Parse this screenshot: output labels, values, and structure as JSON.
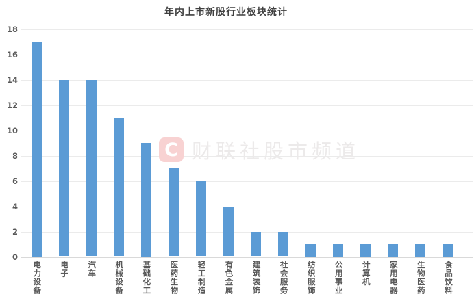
{
  "chart_data": {
    "type": "bar",
    "title": "年内上市新股行业板块统计",
    "categories": [
      "电力设备",
      "电子",
      "汽车",
      "机械设备",
      "基础化工",
      "医药生物",
      "轻工制造",
      "有色金属",
      "建筑装饰",
      "社会服务",
      "纺织服饰",
      "公用事业",
      "计算机",
      "家用电器",
      "生物医药",
      "食品饮料"
    ],
    "values": [
      17,
      14,
      14,
      11,
      9,
      7,
      6,
      4,
      2,
      2,
      1,
      1,
      1,
      1,
      1,
      1
    ],
    "xlabel": "",
    "ylabel": "",
    "ylim": [
      0,
      18
    ],
    "ytick_step": 2,
    "ytick_labels": [
      "0",
      "2",
      "4",
      "6",
      "8",
      "10",
      "12",
      "14",
      "16",
      "18"
    ],
    "grid": "horizontal",
    "legend": "none",
    "bar_color": "#5B9BD5",
    "title_color": "#404040",
    "axis_label_color": "#595959",
    "gridline_color": "#EBEBEB",
    "axis_line_color": "#D9D9D9"
  },
  "watermark": {
    "logo_letter": "C",
    "text": "财联社股市频道",
    "logo_bg_color": "#F8D2D2",
    "logo_letter_color": "#FFFFFF",
    "text_color": "#ECEAEA"
  }
}
